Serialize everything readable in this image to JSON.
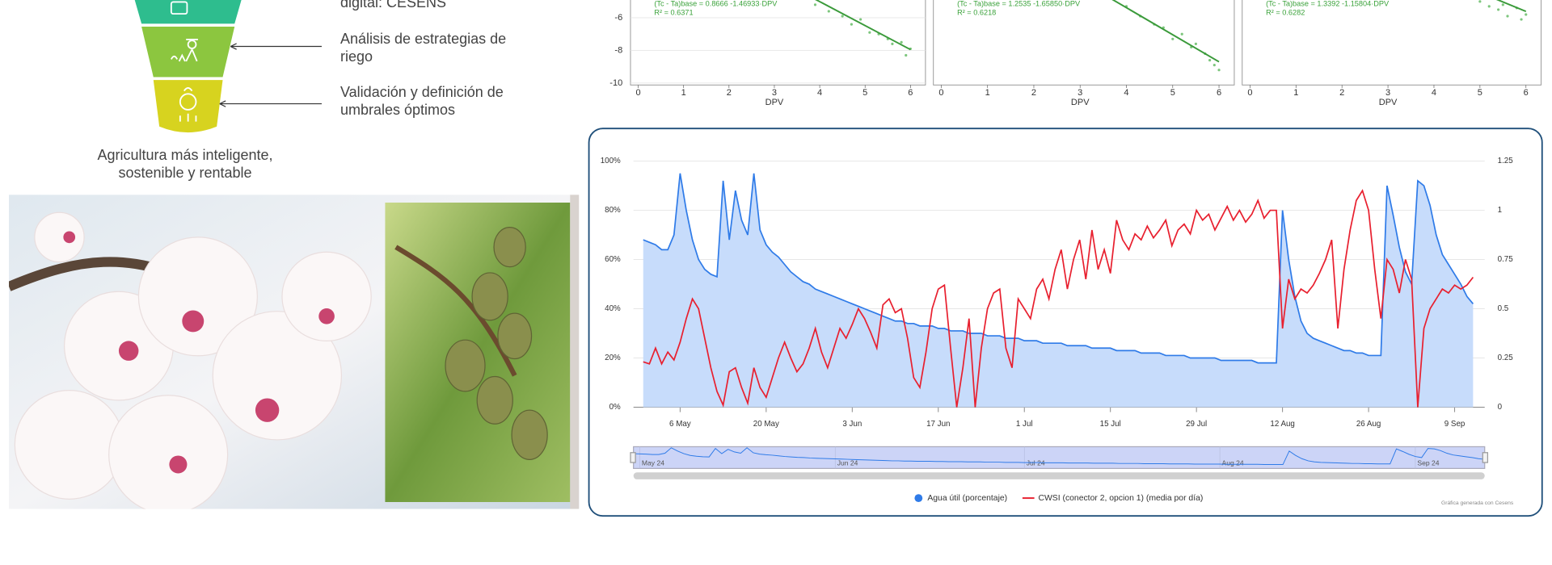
{
  "funnel": {
    "items": [
      "digital: CESENS",
      "Análisis de estrategias de riego",
      "Validación y definición de umbrales óptimos"
    ],
    "caption": "Agricultura más inteligente, sostenible y rentable"
  },
  "chart_data": [
    {
      "type": "scatter",
      "equation": "(Tc - Ta)base = 0.8666 -1.46933·DPV",
      "r2": "R² = 0.6371",
      "fit": {
        "intercept": 0.8666,
        "slope": -1.46933
      },
      "color": "#3a9a3a",
      "x_label": "DPV",
      "x": [
        3.9,
        4.2,
        4.5,
        4.7,
        4.9,
        5.1,
        5.3,
        5.5,
        5.6,
        5.8,
        5.9,
        6.0
      ],
      "y": [
        -5.2,
        -5.6,
        -5.9,
        -6.4,
        -6.1,
        -6.9,
        -7.0,
        -7.3,
        -7.6,
        -7.5,
        -8.3,
        -7.9
      ],
      "xlim": [
        -0.17,
        6.33
      ],
      "xticks": [
        0,
        1,
        2,
        3,
        4,
        5,
        6
      ],
      "ylim": [
        -10.12,
        -4.91
      ],
      "yticks": [
        -6,
        -8,
        -10
      ]
    },
    {
      "type": "scatter",
      "equation": "(Tc - Ta)base = 1.2535 -1.65850·DPV",
      "r2": "R² = 0.6218",
      "fit": {
        "intercept": 1.2535,
        "slope": -1.6585
      },
      "color": "#3a9a3a",
      "x_label": "DPV",
      "x": [
        4.0,
        4.3,
        4.6,
        4.8,
        5.0,
        5.2,
        5.4,
        5.5,
        5.7,
        5.8,
        5.9,
        6.0
      ],
      "y": [
        -5.3,
        -5.9,
        -6.4,
        -6.6,
        -7.3,
        -7.0,
        -7.8,
        -7.6,
        -8.2,
        -8.6,
        -8.9,
        -9.2
      ],
      "xlim": [
        -0.17,
        6.33
      ],
      "xticks": [
        0,
        1,
        2,
        3,
        4,
        5,
        6
      ],
      "ylim": [
        -10.12,
        -4.91
      ]
    },
    {
      "type": "scatter",
      "equation": "(Tc - Ta)base = 1.3392 -1.15804·DPV",
      "r2": "R² = 0.6282",
      "fit": {
        "intercept": 1.3392,
        "slope": -1.15804
      },
      "color": "#3a9a3a",
      "x_label": "DPV",
      "x": [
        5.0,
        5.2,
        5.4,
        5.5,
        5.6,
        5.8,
        5.9,
        6.0
      ],
      "y": [
        -5.0,
        -5.3,
        -5.5,
        -5.2,
        -5.9,
        -5.4,
        -6.1,
        -5.8
      ],
      "xlim": [
        -0.17,
        6.33
      ],
      "xticks": [
        0,
        1,
        2,
        3,
        4,
        5,
        6
      ],
      "ylim": [
        -10.12,
        -4.91
      ]
    },
    {
      "type": "line",
      "x": [
        121,
        122,
        123,
        124,
        125,
        126,
        127,
        128,
        129,
        130,
        131,
        132,
        133,
        134,
        135,
        136,
        137,
        138,
        139,
        140,
        141,
        142,
        143,
        144,
        145,
        146,
        147,
        148,
        149,
        150,
        151,
        152,
        153,
        154,
        155,
        156,
        157,
        158,
        159,
        160,
        161,
        162,
        163,
        164,
        165,
        166,
        167,
        168,
        169,
        170,
        171,
        172,
        173,
        174,
        175,
        176,
        177,
        178,
        179,
        180,
        181,
        182,
        183,
        184,
        185,
        186,
        187,
        188,
        189,
        190,
        191,
        192,
        193,
        194,
        195,
        196,
        197,
        198,
        199,
        200,
        201,
        202,
        203,
        204,
        205,
        206,
        207,
        208,
        209,
        210,
        211,
        212,
        213,
        214,
        215,
        216,
        217,
        218,
        219,
        220,
        221,
        222,
        223,
        224,
        225,
        226,
        227,
        228,
        229,
        230,
        231,
        232,
        233,
        234,
        235,
        236,
        237,
        238,
        239,
        240,
        241,
        242,
        243,
        244,
        245,
        246,
        247,
        248,
        249,
        250,
        251,
        252,
        253,
        254,
        255,
        256
      ],
      "series": [
        {
          "name": "Agua útil (porcentaje)",
          "color": "#2f7be8",
          "fill": "#c7dcfb",
          "values": [
            68,
            67,
            66,
            64,
            64,
            70,
            95,
            80,
            68,
            60,
            56,
            54,
            53,
            92,
            68,
            88,
            76,
            70,
            95,
            72,
            66,
            63,
            61,
            58,
            55,
            53,
            51,
            50,
            48,
            47,
            46,
            45,
            44,
            43,
            42,
            41,
            40,
            39,
            38,
            37,
            36,
            35,
            35,
            34,
            34,
            33,
            33,
            33,
            32,
            32,
            31,
            31,
            31,
            30,
            30,
            30,
            29,
            29,
            29,
            28,
            28,
            28,
            27,
            27,
            27,
            26,
            26,
            26,
            26,
            25,
            25,
            25,
            25,
            24,
            24,
            24,
            24,
            23,
            23,
            23,
            23,
            22,
            22,
            22,
            22,
            21,
            21,
            21,
            21,
            20,
            20,
            20,
            20,
            20,
            19,
            19,
            19,
            19,
            19,
            19,
            18,
            18,
            18,
            18,
            80,
            60,
            45,
            35,
            30,
            28,
            27,
            26,
            25,
            24,
            23,
            23,
            22,
            22,
            21,
            21,
            21,
            90,
            78,
            65,
            55,
            50,
            92,
            90,
            82,
            70,
            62,
            58,
            54,
            50,
            45,
            42
          ]
        },
        {
          "name": "CWSI (conector 2, opcion 1) (media por día)",
          "color": "#e8202f",
          "axis": "y2",
          "values": [
            0.23,
            0.22,
            0.3,
            0.22,
            0.28,
            0.24,
            0.33,
            0.45,
            0.55,
            0.5,
            0.35,
            0.2,
            0.08,
            0.01,
            0.18,
            0.2,
            0.1,
            0.02,
            0.2,
            0.1,
            0.05,
            0.15,
            0.25,
            0.33,
            0.25,
            0.18,
            0.22,
            0.3,
            0.4,
            0.28,
            0.2,
            0.3,
            0.4,
            0.35,
            0.42,
            0.5,
            0.45,
            0.38,
            0.3,
            0.52,
            0.55,
            0.48,
            0.5,
            0.35,
            0.15,
            0.1,
            0.28,
            0.5,
            0.6,
            0.62,
            0.3,
            0,
            0.2,
            0.45,
            0,
            0.3,
            0.5,
            0.58,
            0.6,
            0.3,
            0.2,
            0.55,
            0.5,
            0.45,
            0.6,
            0.65,
            0.55,
            0.7,
            0.8,
            0.6,
            0.75,
            0.85,
            0.65,
            0.9,
            0.7,
            0.8,
            0.68,
            0.95,
            0.85,
            0.8,
            0.88,
            0.85,
            0.92,
            0.86,
            0.9,
            0.95,
            0.82,
            0.9,
            0.93,
            0.88,
            1.0,
            0.95,
            0.98,
            0.9,
            0.96,
            1.02,
            0.95,
            1.0,
            0.94,
            0.98,
            1.05,
            0.96,
            1.0,
            1.0,
            0.4,
            0.65,
            0.55,
            0.6,
            0.58,
            0.62,
            0.68,
            0.75,
            0.85,
            0.4,
            0.7,
            0.9,
            1.05,
            1.1,
            1.0,
            0.7,
            0.45,
            0.75,
            0.7,
            0.58,
            0.75,
            0.65,
            0,
            0.4,
            0.5,
            0.55,
            0.6,
            0.58,
            0.62,
            0.6,
            0.62,
            0.66
          ]
        }
      ],
      "xlim": [
        120.7,
        256.6
      ],
      "xticks": [
        {
          "value": 127,
          "label": "6 May"
        },
        {
          "value": 141,
          "label": "20 May"
        },
        {
          "value": 155,
          "label": "3 Jun"
        },
        {
          "value": 169,
          "label": "17 Jun"
        },
        {
          "value": 183,
          "label": "1 Jul"
        },
        {
          "value": 197,
          "label": "15 Jul"
        },
        {
          "value": 211,
          "label": "29 Jul"
        },
        {
          "value": 225,
          "label": "12 Aug"
        },
        {
          "value": 239,
          "label": "26 Aug"
        },
        {
          "value": 253,
          "label": "9 Sep"
        }
      ],
      "ylim": [
        0,
        100
      ],
      "yticks": [
        {
          "value": 0,
          "label": "0%"
        },
        {
          "value": 20,
          "label": "20%"
        },
        {
          "value": 40,
          "label": "40%"
        },
        {
          "value": 60,
          "label": "60%"
        },
        {
          "value": 80,
          "label": "80%"
        },
        {
          "value": 100,
          "label": "100%"
        }
      ],
      "y2lim": [
        0,
        1.25
      ],
      "y2ticks": [
        0,
        0.25,
        0.5,
        0.75,
        1,
        1.25
      ],
      "grid": true,
      "legend": "bottom",
      "navigator": {
        "xlim": [
          121,
          256
        ],
        "ticks": [
          {
            "value": 122,
            "label": "May 24"
          },
          {
            "value": 153,
            "label": "Jun 24"
          },
          {
            "value": 183,
            "label": "Jul 24"
          },
          {
            "value": 214,
            "label": "Aug 24"
          },
          {
            "value": 245,
            "label": "Sep 24"
          }
        ]
      },
      "credit": "Gráfica generada con Cesens"
    }
  ]
}
